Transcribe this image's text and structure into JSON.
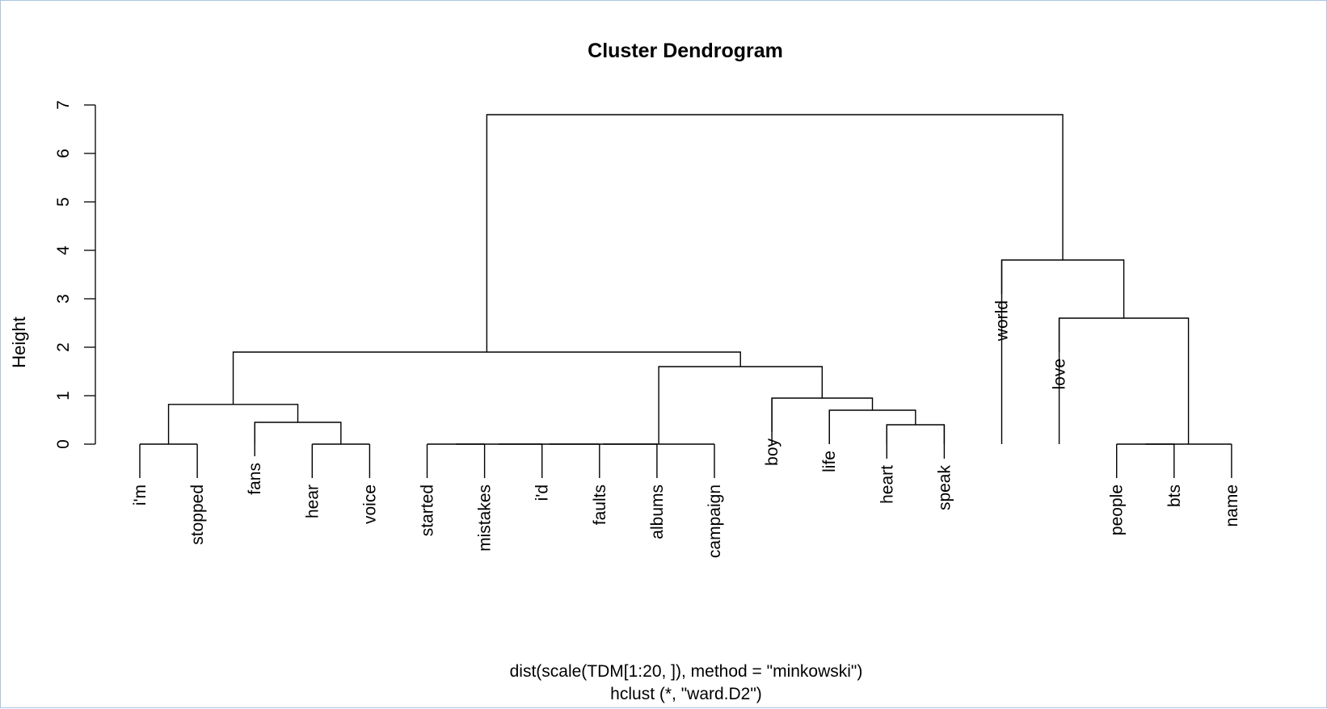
{
  "plot": {
    "title": "Cluster Dendrogram",
    "ylabel": "Height",
    "xlabel_line1": "dist(scale(TDM[1:20, ]), method = \"minkowski\")",
    "xlabel_line2": "hclust (*, \"ward.D2\")"
  },
  "chart_data": {
    "type": "dendrogram",
    "ylim": [
      0,
      7
    ],
    "y_ticks": [
      "0",
      "1",
      "2",
      "3",
      "4",
      "5",
      "6",
      "7"
    ],
    "leaves": [
      "i'm",
      "stopped",
      "fans",
      "hear",
      "voice",
      "started",
      "mistakes",
      "i'd",
      "faults",
      "albums",
      "campaign",
      "boy",
      "life",
      "heart",
      "speak",
      "world",
      "love",
      "people",
      "bts",
      "name"
    ],
    "merges": [
      [
        -1,
        -2,
        0.0
      ],
      [
        -4,
        -5,
        0.0
      ],
      [
        -6,
        -7,
        0.0
      ],
      [
        -8,
        3,
        0.0
      ],
      [
        -9,
        4,
        0.0
      ],
      [
        -10,
        5,
        0.0
      ],
      [
        -11,
        6,
        0.0
      ],
      [
        -18,
        -19,
        0.0
      ],
      [
        -20,
        8,
        0.0
      ],
      [
        -14,
        -15,
        0.4
      ],
      [
        -3,
        2,
        0.45
      ],
      [
        -13,
        10,
        0.7
      ],
      [
        1,
        11,
        0.82
      ],
      [
        -12,
        12,
        0.95
      ],
      [
        7,
        14,
        1.6
      ],
      [
        13,
        15,
        1.9
      ],
      [
        -17,
        9,
        2.6
      ],
      [
        -16,
        17,
        3.8
      ],
      [
        16,
        18,
        6.8
      ]
    ]
  }
}
